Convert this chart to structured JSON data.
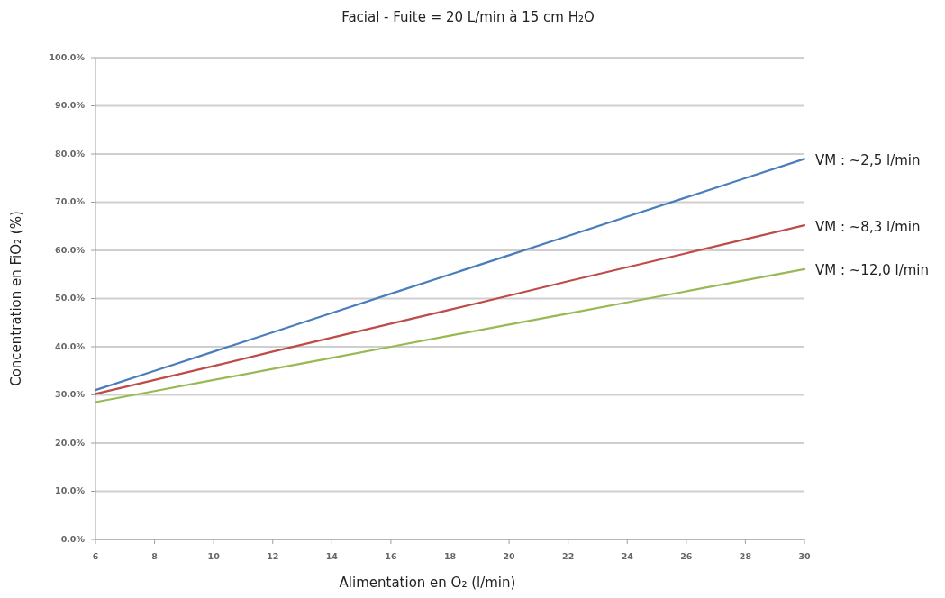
{
  "chart_data": {
    "type": "line",
    "title": "Facial - Fuite = 20 L/min à 15 cm H₂O",
    "xlabel": "Alimentation en O₂ (l/min)",
    "ylabel": "Concentration en FiO₂ (%)",
    "x": [
      6,
      8,
      10,
      12,
      14,
      16,
      18,
      20,
      22,
      24,
      26,
      28,
      30
    ],
    "series": [
      {
        "name": "VM : ~2,5 l/min",
        "color": "#4a7ebb",
        "values": [
          31,
          35,
          39,
          43,
          47,
          51,
          55,
          59,
          63,
          67,
          71,
          75,
          79
        ]
      },
      {
        "name": "VM : ~8,3 l/min",
        "color": "#be4b48",
        "values": [
          30.2,
          33.1,
          36.0,
          39.0,
          41.9,
          44.8,
          47.7,
          50.6,
          53.6,
          56.5,
          59.4,
          62.3,
          65.2
        ]
      },
      {
        "name": "VM : ~12,0 l/min",
        "color": "#98b954",
        "values": [
          28.5,
          30.8,
          33.1,
          35.4,
          37.7,
          40.0,
          42.3,
          44.6,
          46.9,
          49.2,
          51.5,
          53.8,
          56.1
        ]
      }
    ],
    "xlim": [
      6,
      30
    ],
    "xticks": [
      6,
      8,
      10,
      12,
      14,
      16,
      18,
      20,
      22,
      24,
      26,
      28,
      30
    ],
    "ylim": [
      0,
      100
    ],
    "yticks": [
      {
        "value": 0,
        "label": "0.0%"
      },
      {
        "value": 10,
        "label": "10.0%"
      },
      {
        "value": 20,
        "label": "20.0%"
      },
      {
        "value": 30,
        "label": "30.0%"
      },
      {
        "value": 40,
        "label": "40.0%"
      },
      {
        "value": 50,
        "label": "50.0%"
      },
      {
        "value": 60,
        "label": "60.0%"
      },
      {
        "value": 70,
        "label": "70.0%"
      },
      {
        "value": 80,
        "label": "80.0%"
      },
      {
        "value": 90,
        "label": "90.0%"
      },
      {
        "value": 100,
        "label": "100.0%"
      }
    ],
    "grid": "y",
    "legend": false,
    "marker": "none",
    "line_style": "solid"
  }
}
